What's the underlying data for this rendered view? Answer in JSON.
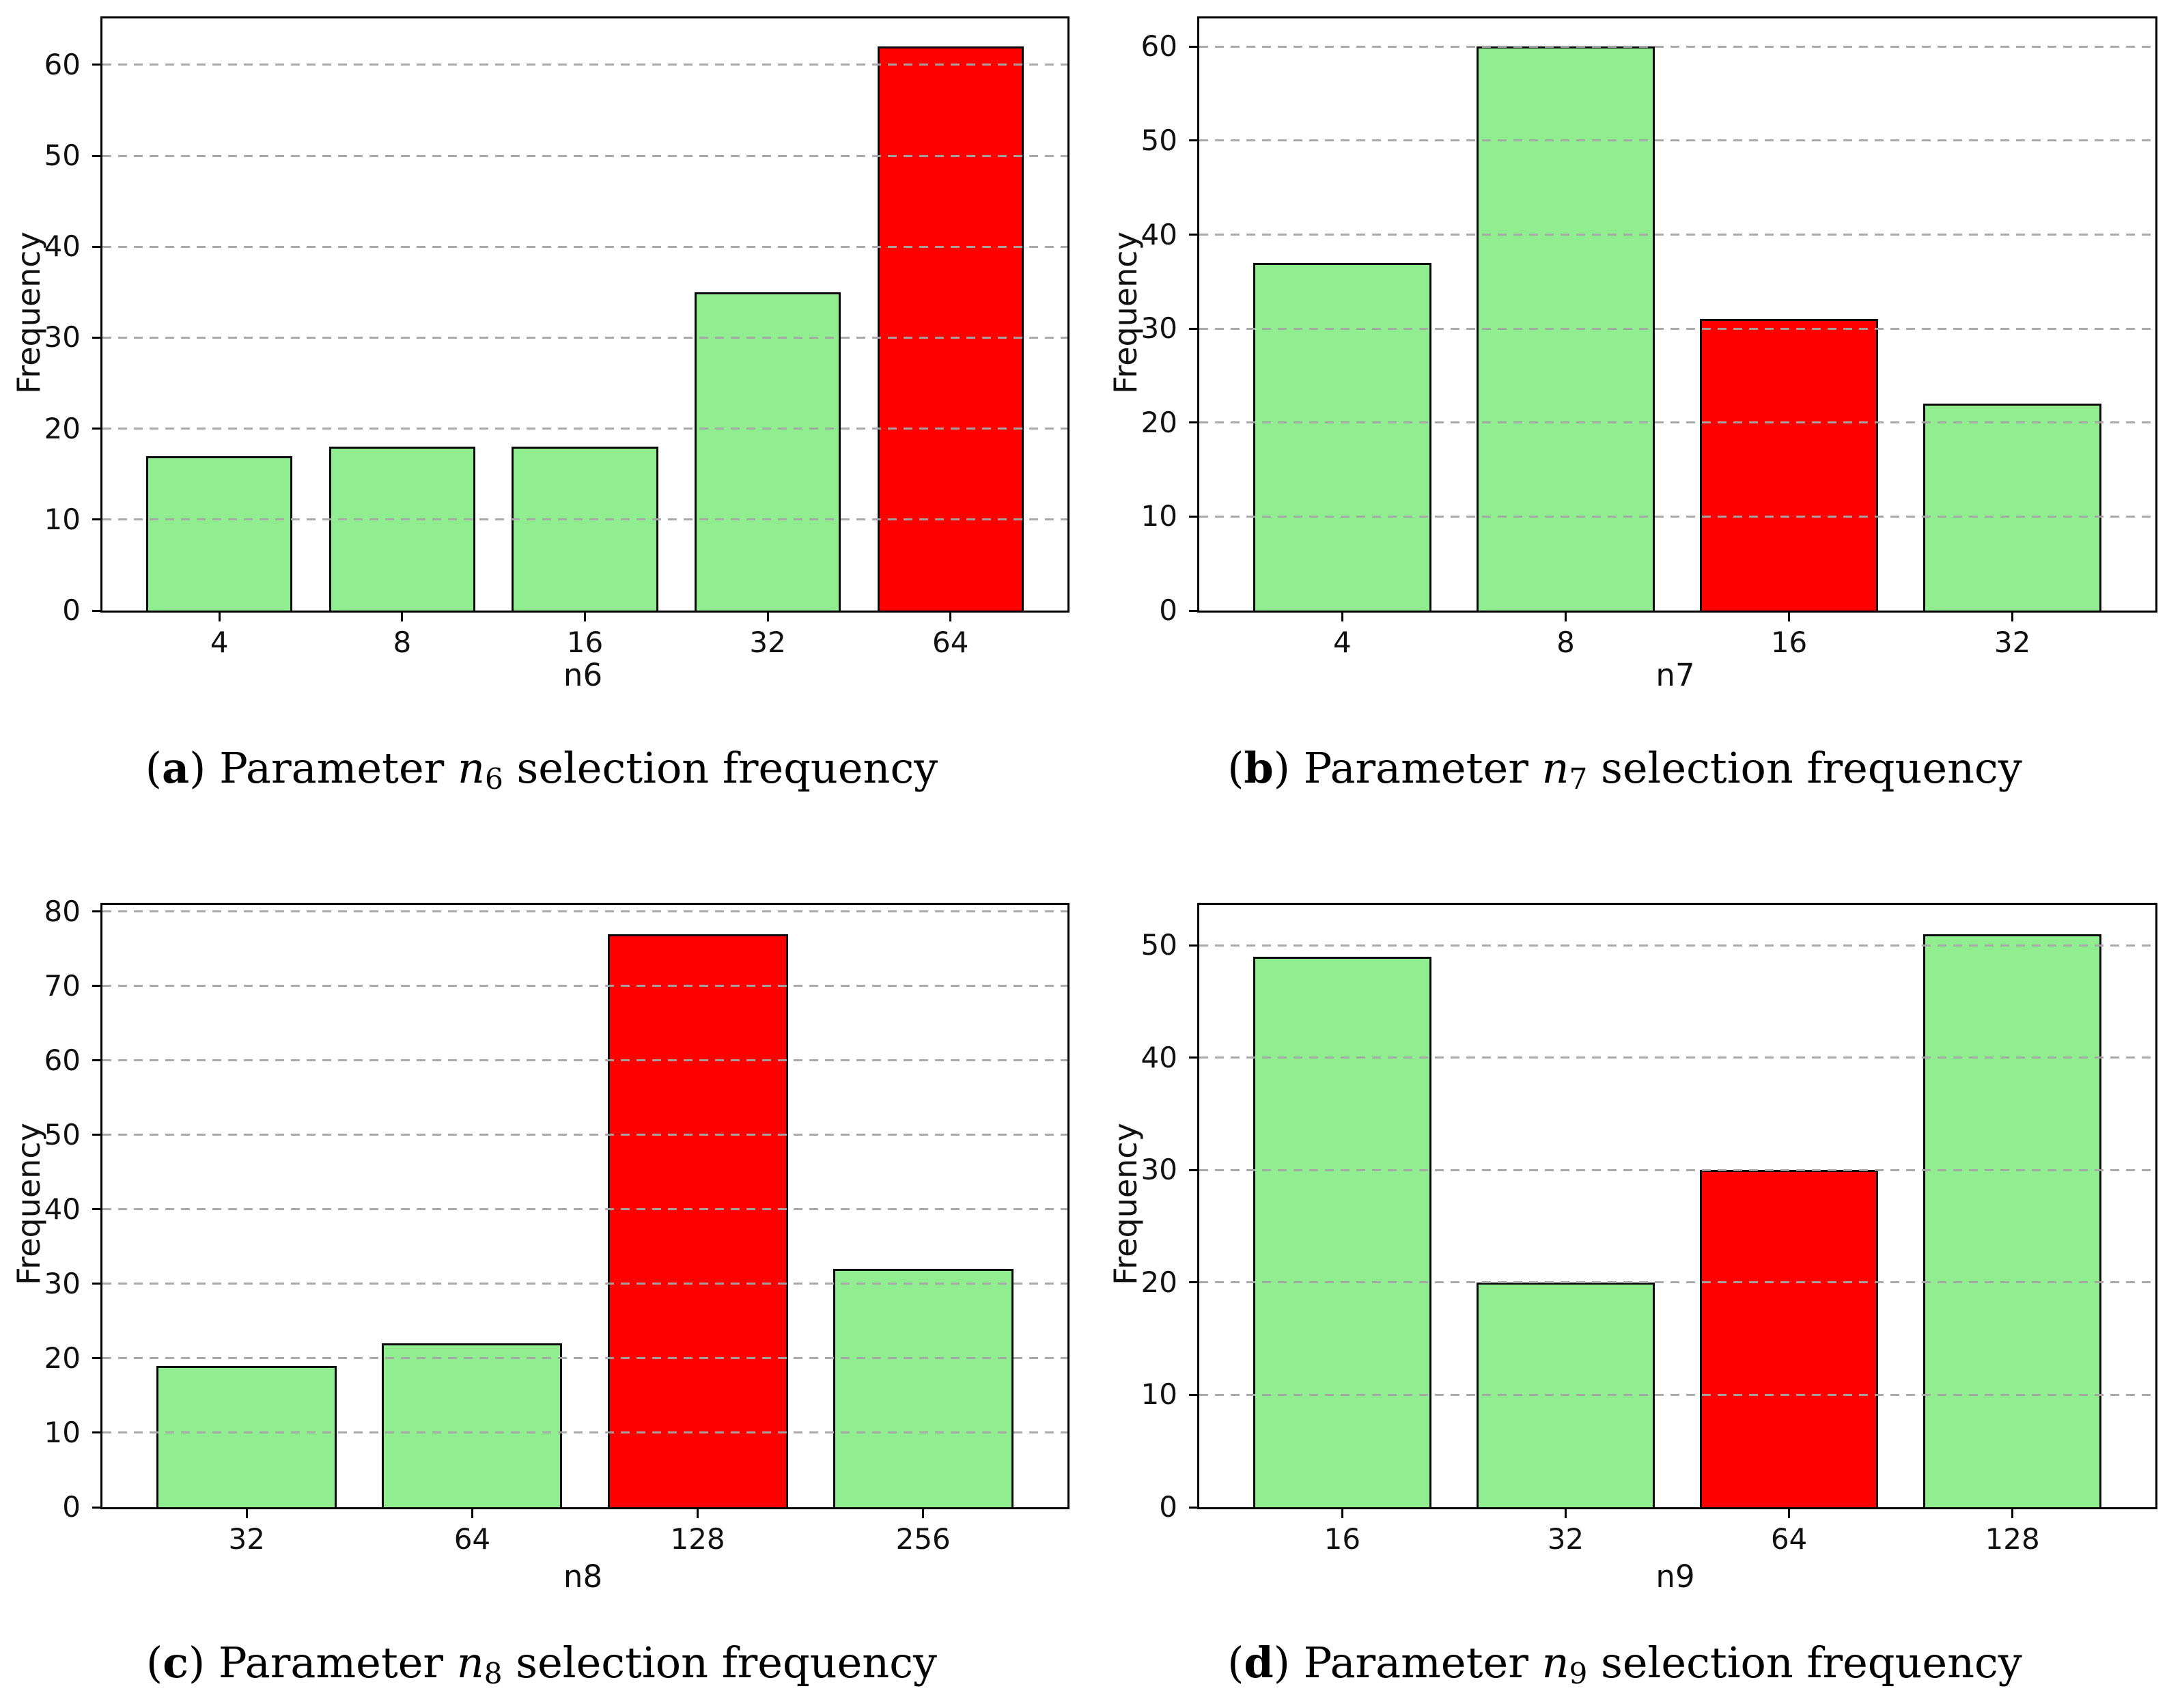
{
  "figure": {
    "description": "2x2 grid of parameter selection frequency histograms",
    "default_bar_color": "#90EE90",
    "highlight_bar_color": "#FF0000",
    "bar_edge_color": "#0a0a0a",
    "grid_color": "#a5a5a5"
  },
  "chart_data": [
    {
      "id": "a",
      "type": "bar",
      "xlabel": "n6",
      "ylabel": "Frequency",
      "categories": [
        "4",
        "8",
        "16",
        "32",
        "64"
      ],
      "values": [
        17,
        18,
        18,
        35,
        62
      ],
      "bar_colors": [
        "#90EE90",
        "#90EE90",
        "#90EE90",
        "#90EE90",
        "#FF0000"
      ],
      "highlight_index": 4,
      "ylim": [
        0,
        65.1
      ],
      "yticks": [
        0,
        10,
        20,
        30,
        40,
        50,
        60
      ],
      "grid": "horizontal-dashed",
      "legend": "none",
      "caption": {
        "open": "(",
        "letter": "a",
        "mid": ") Parameter ",
        "var": "n",
        "sub": "6",
        "tail": " selection frequency"
      }
    },
    {
      "id": "b",
      "type": "bar",
      "xlabel": "n7",
      "ylabel": "Frequency",
      "categories": [
        "4",
        "8",
        "16",
        "32"
      ],
      "values": [
        37,
        60,
        31,
        22
      ],
      "bar_colors": [
        "#90EE90",
        "#90EE90",
        "#FF0000",
        "#90EE90"
      ],
      "highlight_index": 2,
      "ylim": [
        0,
        63
      ],
      "yticks": [
        0,
        10,
        20,
        30,
        40,
        50,
        60
      ],
      "grid": "horizontal-dashed",
      "legend": "none",
      "caption": {
        "open": "(",
        "letter": "b",
        "mid": ") Parameter ",
        "var": "n",
        "sub": "7",
        "tail": " selection frequency"
      }
    },
    {
      "id": "c",
      "type": "bar",
      "xlabel": "n8",
      "ylabel": "Frequency",
      "categories": [
        "32",
        "64",
        "128",
        "256"
      ],
      "values": [
        19,
        22,
        77,
        32
      ],
      "bar_colors": [
        "#90EE90",
        "#90EE90",
        "#FF0000",
        "#90EE90"
      ],
      "highlight_index": 2,
      "ylim": [
        0,
        80.9
      ],
      "yticks": [
        0,
        10,
        20,
        30,
        40,
        50,
        60,
        70,
        80
      ],
      "grid": "horizontal-dashed",
      "legend": "none",
      "caption": {
        "open": "(",
        "letter": "c",
        "mid": ") Parameter ",
        "var": "n",
        "sub": "8",
        "tail": " selection frequency"
      }
    },
    {
      "id": "d",
      "type": "bar",
      "xlabel": "n9",
      "ylabel": "Frequency",
      "categories": [
        "16",
        "32",
        "64",
        "128"
      ],
      "values": [
        49,
        20,
        30,
        51
      ],
      "bar_colors": [
        "#90EE90",
        "#90EE90",
        "#FF0000",
        "#90EE90"
      ],
      "highlight_index": 2,
      "ylim": [
        0,
        53.6
      ],
      "yticks": [
        0,
        10,
        20,
        30,
        40,
        50
      ],
      "grid": "horizontal-dashed",
      "legend": "none",
      "caption": {
        "open": "(",
        "letter": "d",
        "mid": ") Parameter ",
        "var": "n",
        "sub": "9",
        "tail": " selection frequency"
      }
    }
  ]
}
